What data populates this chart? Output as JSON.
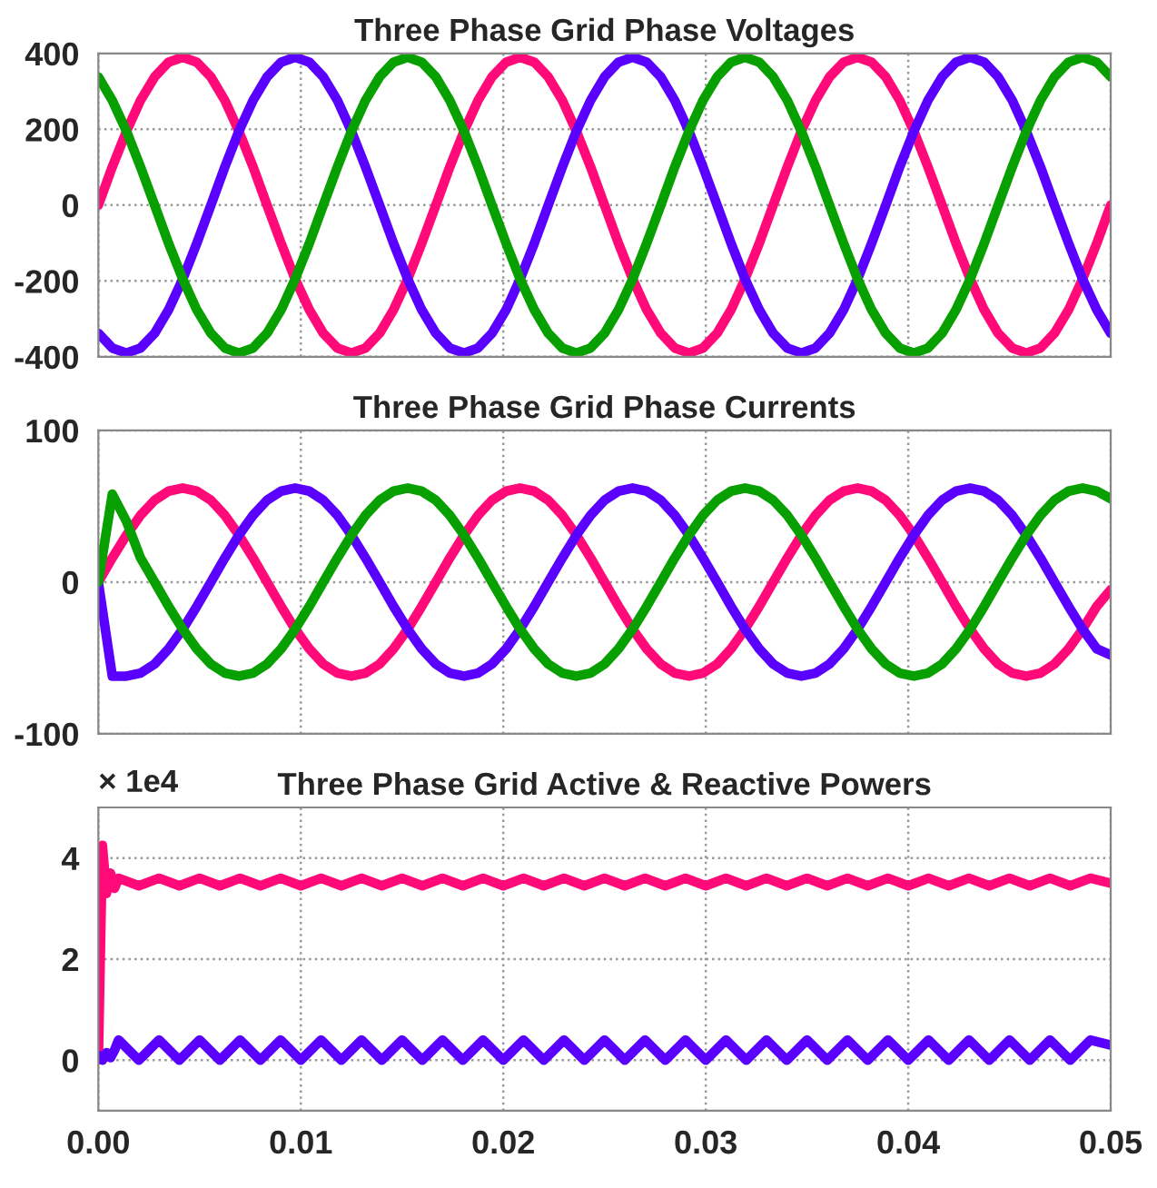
{
  "chart_data": [
    {
      "type": "line",
      "title": "Three Phase Grid Phase Voltages",
      "grid": true,
      "tick_labels": "y",
      "xlim": [
        0,
        0.05
      ],
      "xticks": [
        0,
        0.01,
        0.02,
        0.03,
        0.04,
        0.05
      ],
      "ylim": [
        -400,
        400
      ],
      "yticks": [
        -400,
        -200,
        0,
        200,
        400
      ],
      "x": [
        0,
        0.00069,
        0.00139,
        0.00208,
        0.00278,
        0.00347,
        0.00417,
        0.00486,
        0.00556,
        0.00625,
        0.00694,
        0.00764,
        0.00833,
        0.00903,
        0.00972,
        0.01042,
        0.01111,
        0.01181,
        0.0125,
        0.01319,
        0.01389,
        0.01458,
        0.01528,
        0.01597,
        0.01667,
        0.01736,
        0.01806,
        0.01875,
        0.01944,
        0.02014,
        0.02083,
        0.02153,
        0.02222,
        0.02292,
        0.02361,
        0.02431,
        0.025,
        0.02569,
        0.02639,
        0.02708,
        0.02778,
        0.02847,
        0.02917,
        0.02986,
        0.03056,
        0.03125,
        0.03194,
        0.03264,
        0.03333,
        0.03403,
        0.03472,
        0.03542,
        0.03611,
        0.03681,
        0.0375,
        0.03819,
        0.03889,
        0.03958,
        0.04028,
        0.04097,
        0.04167,
        0.04236,
        0.04306,
        0.04375,
        0.04444,
        0.04514,
        0.04583,
        0.04653,
        0.04722,
        0.04792,
        0.04861,
        0.04931,
        0.05
      ],
      "series": [
        {
          "color": "#ff0a78",
          "values": [
            0,
            101,
            195,
            276,
            338,
            377,
            390,
            377,
            338,
            276,
            195,
            101,
            0,
            -101,
            -195,
            -276,
            -338,
            -377,
            -390,
            -377,
            -338,
            -276,
            -195,
            -101,
            0,
            101,
            195,
            276,
            338,
            377,
            390,
            377,
            338,
            276,
            195,
            101,
            0,
            -101,
            -195,
            -276,
            -338,
            -377,
            -390,
            -377,
            -338,
            -276,
            -195,
            -101,
            0,
            101,
            195,
            276,
            338,
            377,
            390,
            377,
            338,
            276,
            195,
            101,
            0,
            -101,
            -195,
            -276,
            -338,
            -377,
            -390,
            -377,
            -338,
            -276,
            -195,
            -101,
            0
          ]
        },
        {
          "color": "#5a00ff",
          "values": [
            -338,
            -377,
            -390,
            -377,
            -338,
            -276,
            -195,
            -101,
            0,
            101,
            195,
            276,
            338,
            377,
            390,
            377,
            338,
            276,
            195,
            101,
            0,
            -101,
            -195,
            -276,
            -338,
            -377,
            -390,
            -377,
            -338,
            -276,
            -195,
            -101,
            0,
            101,
            195,
            276,
            338,
            377,
            390,
            377,
            338,
            276,
            195,
            101,
            0,
            -101,
            -195,
            -276,
            -338,
            -377,
            -390,
            -377,
            -338,
            -276,
            -195,
            -101,
            0,
            101,
            195,
            276,
            338,
            377,
            390,
            377,
            338,
            276,
            195,
            101,
            0,
            -101,
            -195,
            -276,
            -338
          ]
        },
        {
          "color": "#08a000",
          "values": [
            338,
            276,
            195,
            101,
            0,
            -101,
            -195,
            -276,
            -338,
            -377,
            -390,
            -377,
            -338,
            -276,
            -195,
            -101,
            0,
            101,
            195,
            276,
            338,
            377,
            390,
            377,
            338,
            276,
            195,
            101,
            0,
            -101,
            -195,
            -276,
            -338,
            -377,
            -390,
            -377,
            -338,
            -276,
            -195,
            -101,
            0,
            101,
            195,
            276,
            338,
            377,
            390,
            377,
            338,
            276,
            195,
            101,
            0,
            -101,
            -195,
            -276,
            -338,
            -377,
            -390,
            -377,
            -338,
            -276,
            -195,
            -101,
            0,
            101,
            195,
            276,
            338,
            377,
            390,
            377,
            338
          ]
        }
      ]
    },
    {
      "type": "line",
      "title": "Three Phase Grid Phase Currents",
      "grid": true,
      "tick_labels": "y",
      "xlim": [
        0,
        0.05
      ],
      "xticks": [
        0,
        0.01,
        0.02,
        0.03,
        0.04,
        0.05
      ],
      "ylim": [
        -100,
        100
      ],
      "yticks": [
        -100,
        0,
        100
      ],
      "x": [
        0,
        0.00069,
        0.00139,
        0.00208,
        0.00278,
        0.00347,
        0.00417,
        0.00486,
        0.00556,
        0.00625,
        0.00694,
        0.00764,
        0.00833,
        0.00903,
        0.00972,
        0.01042,
        0.01111,
        0.01181,
        0.0125,
        0.01319,
        0.01389,
        0.01458,
        0.01528,
        0.01597,
        0.01667,
        0.01736,
        0.01806,
        0.01875,
        0.01944,
        0.02014,
        0.02083,
        0.02153,
        0.02222,
        0.02292,
        0.02361,
        0.02431,
        0.025,
        0.02569,
        0.02639,
        0.02708,
        0.02778,
        0.02847,
        0.02917,
        0.02986,
        0.03056,
        0.03125,
        0.03194,
        0.03264,
        0.03333,
        0.03403,
        0.03472,
        0.03542,
        0.03611,
        0.03681,
        0.0375,
        0.03819,
        0.03889,
        0.03958,
        0.04028,
        0.04097,
        0.04167,
        0.04236,
        0.04306,
        0.04375,
        0.04444,
        0.04514,
        0.04583,
        0.04653,
        0.04722,
        0.04792,
        0.04861,
        0.04931,
        0.05
      ],
      "series": [
        {
          "color": "#ff0a78",
          "values": [
            0,
            16,
            31,
            44,
            54,
            60,
            62,
            60,
            54,
            44,
            31,
            16,
            0,
            -16,
            -31,
            -44,
            -54,
            -60,
            -62,
            -60,
            -54,
            -44,
            -31,
            -16,
            0,
            16,
            31,
            44,
            54,
            60,
            62,
            60,
            54,
            44,
            31,
            16,
            0,
            -16,
            -31,
            -44,
            -54,
            -60,
            -62,
            -60,
            -54,
            -44,
            -31,
            -16,
            0,
            16,
            31,
            44,
            54,
            60,
            62,
            60,
            54,
            44,
            31,
            16,
            0,
            -16,
            -31,
            -44,
            -54,
            -60,
            -62,
            -60,
            -54,
            -44,
            -31,
            -16,
            -5
          ]
        },
        {
          "color": "#5a00ff",
          "values": [
            0,
            -62,
            -62,
            -60,
            -54,
            -44,
            -31,
            -16,
            0,
            16,
            31,
            44,
            54,
            60,
            62,
            60,
            54,
            44,
            31,
            16,
            0,
            -16,
            -31,
            -44,
            -54,
            -60,
            -62,
            -60,
            -54,
            -44,
            -31,
            -16,
            0,
            16,
            31,
            44,
            54,
            60,
            62,
            60,
            54,
            44,
            31,
            16,
            0,
            -16,
            -31,
            -44,
            -54,
            -60,
            -62,
            -60,
            -54,
            -44,
            -31,
            -16,
            0,
            16,
            31,
            44,
            54,
            60,
            62,
            60,
            54,
            44,
            31,
            16,
            0,
            -16,
            -31,
            -44,
            -48
          ]
        },
        {
          "color": "#08a000",
          "values": [
            0,
            58,
            40,
            16,
            0,
            -16,
            -31,
            -44,
            -54,
            -60,
            -62,
            -60,
            -54,
            -44,
            -31,
            -16,
            0,
            16,
            31,
            44,
            54,
            60,
            62,
            60,
            54,
            44,
            31,
            16,
            0,
            -16,
            -31,
            -44,
            -54,
            -60,
            -62,
            -60,
            -54,
            -44,
            -31,
            -16,
            0,
            16,
            31,
            44,
            54,
            60,
            62,
            60,
            54,
            44,
            31,
            16,
            0,
            -16,
            -31,
            -44,
            -54,
            -60,
            -62,
            -60,
            -54,
            -44,
            -31,
            -16,
            0,
            16,
            31,
            44,
            54,
            60,
            62,
            60,
            55
          ]
        }
      ]
    },
    {
      "type": "line",
      "title": "Three Phase Grid Active & Reactive Powers",
      "grid": true,
      "annotations": [
        "× 1e4"
      ],
      "xlim": [
        0,
        0.05
      ],
      "xticks": [
        {
          "value": 0,
          "label": "0.00"
        },
        {
          "value": 0.01,
          "label": "0.01"
        },
        {
          "value": 0.02,
          "label": "0.02"
        },
        {
          "value": 0.03,
          "label": "0.03"
        },
        {
          "value": 0.04,
          "label": "0.04"
        },
        {
          "value": 0.05,
          "label": "0.05"
        }
      ],
      "ylim": [
        -1,
        5
      ],
      "yticks": [
        0,
        2,
        4
      ],
      "x": [
        0,
        0.0002,
        0.0004,
        0.0006,
        0.0008,
        0.001,
        0.002,
        0.003,
        0.004,
        0.005,
        0.006,
        0.007,
        0.008,
        0.009,
        0.01,
        0.011,
        0.012,
        0.013,
        0.014,
        0.015,
        0.016,
        0.017,
        0.018,
        0.019,
        0.02,
        0.021,
        0.022,
        0.023,
        0.024,
        0.025,
        0.026,
        0.027,
        0.028,
        0.029,
        0.03,
        0.031,
        0.032,
        0.033,
        0.034,
        0.035,
        0.036,
        0.037,
        0.038,
        0.039,
        0.04,
        0.041,
        0.042,
        0.043,
        0.044,
        0.045,
        0.046,
        0.047,
        0.048,
        0.049,
        0.05
      ],
      "series": [
        {
          "color": "#ff0a78",
          "values": [
            0,
            4.25,
            3.3,
            3.7,
            3.4,
            3.6,
            3.45,
            3.6,
            3.45,
            3.6,
            3.45,
            3.6,
            3.45,
            3.6,
            3.45,
            3.6,
            3.45,
            3.6,
            3.45,
            3.6,
            3.45,
            3.6,
            3.45,
            3.6,
            3.45,
            3.6,
            3.45,
            3.6,
            3.45,
            3.6,
            3.45,
            3.6,
            3.45,
            3.6,
            3.45,
            3.6,
            3.45,
            3.6,
            3.45,
            3.6,
            3.45,
            3.6,
            3.45,
            3.6,
            3.45,
            3.6,
            3.45,
            3.6,
            3.45,
            3.6,
            3.45,
            3.6,
            3.45,
            3.6,
            3.5
          ]
        },
        {
          "color": "#5a00ff",
          "values": [
            0.1,
            0.0,
            0.15,
            0.05,
            0.2,
            0.4,
            0.0,
            0.4,
            0.0,
            0.4,
            0.0,
            0.4,
            0.0,
            0.4,
            0.0,
            0.4,
            0.0,
            0.4,
            0.0,
            0.4,
            0.0,
            0.4,
            0.0,
            0.4,
            0.0,
            0.4,
            0.0,
            0.4,
            0.0,
            0.4,
            0.0,
            0.4,
            0.0,
            0.4,
            0.0,
            0.4,
            0.0,
            0.4,
            0.0,
            0.4,
            0.0,
            0.4,
            0.0,
            0.4,
            0.0,
            0.4,
            0.0,
            0.4,
            0.0,
            0.4,
            0.0,
            0.4,
            0.0,
            0.4,
            0.3
          ]
        }
      ]
    }
  ]
}
